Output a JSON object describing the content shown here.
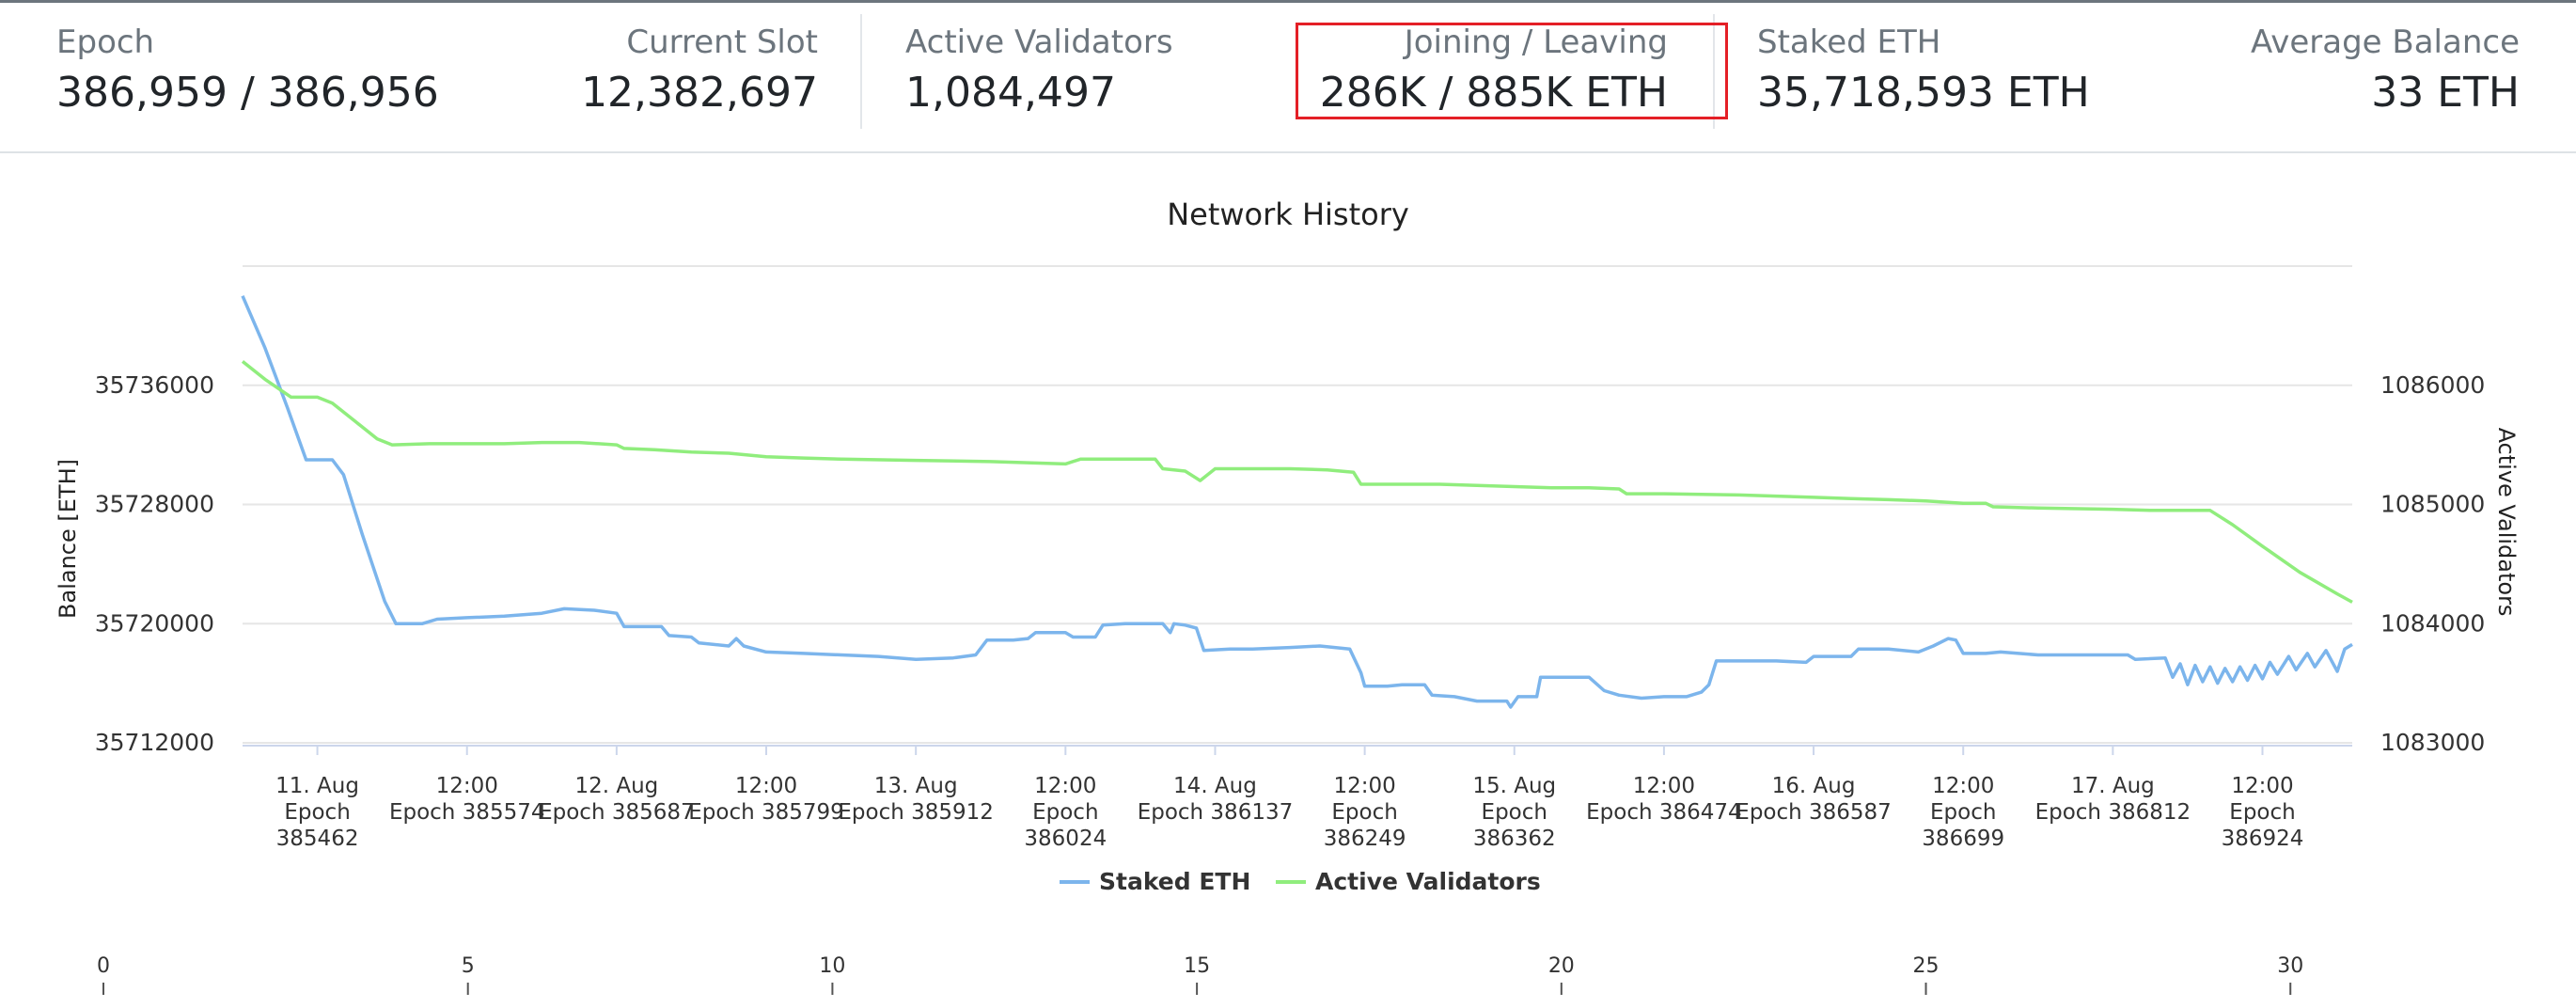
{
  "stats": {
    "epoch": {
      "label": "Epoch",
      "value": "386,959 / 386,956"
    },
    "current_slot": {
      "label": "Current Slot",
      "value": "12,382,697"
    },
    "active_validators": {
      "label": "Active Validators",
      "value": "1,084,497"
    },
    "joining_leaving": {
      "label": "Joining / Leaving",
      "value": "286K / 885K ETH"
    },
    "staked_eth": {
      "label": "Staked ETH",
      "value": "35,718,593 ETH"
    },
    "average_balance": {
      "label": "Average Balance",
      "value": "33 ETH"
    }
  },
  "chart_data": {
    "type": "line",
    "title": "Network History",
    "ylabel_left": "Balance [ETH]",
    "ylabel_right": "Active Validators",
    "ylim_left": [
      35712000,
      35744000
    ],
    "ylim_right": [
      1083000,
      1087000
    ],
    "yticks_left": [
      35712000,
      35720000,
      35728000,
      35736000
    ],
    "yticks_right": [
      1083000,
      1084000,
      1085000,
      1086000
    ],
    "x_range": [
      0,
      28.2
    ],
    "x_ticks": [
      {
        "x": 1,
        "lines": [
          "11. Aug",
          "Epoch",
          "385462"
        ]
      },
      {
        "x": 3,
        "lines": [
          "12:00",
          "Epoch 385574"
        ]
      },
      {
        "x": 5,
        "lines": [
          "12. Aug",
          "Epoch 385687"
        ]
      },
      {
        "x": 7,
        "lines": [
          "12:00",
          "Epoch 385799"
        ]
      },
      {
        "x": 9,
        "lines": [
          "13. Aug",
          "Epoch 385912"
        ]
      },
      {
        "x": 11,
        "lines": [
          "12:00",
          "Epoch",
          "386024"
        ]
      },
      {
        "x": 13,
        "lines": [
          "14. Aug",
          "Epoch 386137"
        ]
      },
      {
        "x": 15,
        "lines": [
          "12:00",
          "Epoch",
          "386249"
        ]
      },
      {
        "x": 17,
        "lines": [
          "15. Aug",
          "Epoch",
          "386362"
        ]
      },
      {
        "x": 19,
        "lines": [
          "12:00",
          "Epoch 386474"
        ]
      },
      {
        "x": 21,
        "lines": [
          "16. Aug",
          "Epoch 386587"
        ]
      },
      {
        "x": 23,
        "lines": [
          "12:00",
          "Epoch",
          "386699"
        ]
      },
      {
        "x": 25,
        "lines": [
          "17. Aug",
          "Epoch 386812"
        ]
      },
      {
        "x": 27,
        "lines": [
          "12:00",
          "Epoch",
          "386924"
        ]
      }
    ],
    "legend_position": "bottom-center",
    "grid": true,
    "series": [
      {
        "name": "Staked ETH",
        "axis": "left",
        "color": "#7cb5ec",
        "points": [
          [
            0,
            35742000
          ],
          [
            0.3,
            35738500
          ],
          [
            0.6,
            35734500
          ],
          [
            0.85,
            35731000
          ],
          [
            1.0,
            35731000
          ],
          [
            1.2,
            35731000
          ],
          [
            1.35,
            35730000
          ],
          [
            1.6,
            35726000
          ],
          [
            1.9,
            35721500
          ],
          [
            2.05,
            35720000
          ],
          [
            2.4,
            35720000
          ],
          [
            2.6,
            35720300
          ],
          [
            3.0,
            35720400
          ],
          [
            3.5,
            35720500
          ],
          [
            4.0,
            35720700
          ],
          [
            4.3,
            35721000
          ],
          [
            4.7,
            35720900
          ],
          [
            5.0,
            35720700
          ],
          [
            5.1,
            35719800
          ],
          [
            5.3,
            35719800
          ],
          [
            5.6,
            35719800
          ],
          [
            5.7,
            35719200
          ],
          [
            6.0,
            35719100
          ],
          [
            6.1,
            35718700
          ],
          [
            6.5,
            35718500
          ],
          [
            6.6,
            35719000
          ],
          [
            6.7,
            35718500
          ],
          [
            7.0,
            35718100
          ],
          [
            7.5,
            35718000
          ],
          [
            8.0,
            35717900
          ],
          [
            8.5,
            35717800
          ],
          [
            9.0,
            35717600
          ],
          [
            9.5,
            35717700
          ],
          [
            9.8,
            35717900
          ],
          [
            9.95,
            35718900
          ],
          [
            10.3,
            35718900
          ],
          [
            10.5,
            35719000
          ],
          [
            10.6,
            35719400
          ],
          [
            11.0,
            35719400
          ],
          [
            11.1,
            35719100
          ],
          [
            11.4,
            35719100
          ],
          [
            11.5,
            35719900
          ],
          [
            11.8,
            35720000
          ],
          [
            12.0,
            35720000
          ],
          [
            12.3,
            35720000
          ],
          [
            12.4,
            35719400
          ],
          [
            12.45,
            35720000
          ],
          [
            12.6,
            35719900
          ],
          [
            12.75,
            35719700
          ],
          [
            12.85,
            35718200
          ],
          [
            13.2,
            35718300
          ],
          [
            13.5,
            35718300
          ],
          [
            14.0,
            35718400
          ],
          [
            14.4,
            35718500
          ],
          [
            14.8,
            35718300
          ],
          [
            14.95,
            35716700
          ],
          [
            15.0,
            35715800
          ],
          [
            15.3,
            35715800
          ],
          [
            15.5,
            35715900
          ],
          [
            15.8,
            35715900
          ],
          [
            15.9,
            35715200
          ],
          [
            16.2,
            35715100
          ],
          [
            16.5,
            35714800
          ],
          [
            16.9,
            35714800
          ],
          [
            16.95,
            35714400
          ],
          [
            17.05,
            35715100
          ],
          [
            17.3,
            35715100
          ],
          [
            17.35,
            35716400
          ],
          [
            17.8,
            35716400
          ],
          [
            18.0,
            35716400
          ],
          [
            18.2,
            35715500
          ],
          [
            18.4,
            35715200
          ],
          [
            18.7,
            35715000
          ],
          [
            19.0,
            35715100
          ],
          [
            19.3,
            35715100
          ],
          [
            19.5,
            35715400
          ],
          [
            19.6,
            35715900
          ],
          [
            19.7,
            35717500
          ],
          [
            20.0,
            35717500
          ],
          [
            20.5,
            35717500
          ],
          [
            20.9,
            35717400
          ],
          [
            21.0,
            35717800
          ],
          [
            21.2,
            35717800
          ],
          [
            21.5,
            35717800
          ],
          [
            21.6,
            35718300
          ],
          [
            22.0,
            35718300
          ],
          [
            22.4,
            35718100
          ],
          [
            22.6,
            35718500
          ],
          [
            22.8,
            35719000
          ],
          [
            22.9,
            35718900
          ],
          [
            23.0,
            35718000
          ],
          [
            23.3,
            35718000
          ],
          [
            23.5,
            35718100
          ],
          [
            24.0,
            35717900
          ],
          [
            24.5,
            35717900
          ],
          [
            25.0,
            35717900
          ],
          [
            25.2,
            35717900
          ],
          [
            25.3,
            35717600
          ],
          [
            25.7,
            35717700
          ],
          [
            25.8,
            35716400
          ],
          [
            25.9,
            35717300
          ],
          [
            26.0,
            35715900
          ],
          [
            26.1,
            35717200
          ],
          [
            26.2,
            35716100
          ],
          [
            26.3,
            35717100
          ],
          [
            26.4,
            35716000
          ],
          [
            26.5,
            35717000
          ],
          [
            26.6,
            35716100
          ],
          [
            26.7,
            35717100
          ],
          [
            26.8,
            35716200
          ],
          [
            26.9,
            35717200
          ],
          [
            27.0,
            35716300
          ],
          [
            27.1,
            35717400
          ],
          [
            27.2,
            35716600
          ],
          [
            27.35,
            35717800
          ],
          [
            27.45,
            35716900
          ],
          [
            27.6,
            35718000
          ],
          [
            27.7,
            35717100
          ],
          [
            27.85,
            35718200
          ],
          [
            28.0,
            35716800
          ],
          [
            28.1,
            35718300
          ],
          [
            28.2,
            35718600
          ]
        ]
      },
      {
        "name": "Active Validators",
        "axis": "right",
        "color": "#90ed7d",
        "points": [
          [
            0,
            1086200
          ],
          [
            0.3,
            1086050
          ],
          [
            0.65,
            1085900
          ],
          [
            1.0,
            1085900
          ],
          [
            1.2,
            1085850
          ],
          [
            1.5,
            1085700
          ],
          [
            1.8,
            1085550
          ],
          [
            2.0,
            1085500
          ],
          [
            2.5,
            1085510
          ],
          [
            3.0,
            1085510
          ],
          [
            3.5,
            1085510
          ],
          [
            4.0,
            1085520
          ],
          [
            4.5,
            1085520
          ],
          [
            5.0,
            1085500
          ],
          [
            5.1,
            1085470
          ],
          [
            5.5,
            1085460
          ],
          [
            6.0,
            1085440
          ],
          [
            6.5,
            1085430
          ],
          [
            7.0,
            1085400
          ],
          [
            7.5,
            1085390
          ],
          [
            8.0,
            1085380
          ],
          [
            9.0,
            1085370
          ],
          [
            10.0,
            1085360
          ],
          [
            10.5,
            1085350
          ],
          [
            11.0,
            1085340
          ],
          [
            11.2,
            1085380
          ],
          [
            12.0,
            1085380
          ],
          [
            12.2,
            1085380
          ],
          [
            12.3,
            1085300
          ],
          [
            12.6,
            1085280
          ],
          [
            12.8,
            1085200
          ],
          [
            13.0,
            1085300
          ],
          [
            13.3,
            1085300
          ],
          [
            14.0,
            1085300
          ],
          [
            14.5,
            1085290
          ],
          [
            14.85,
            1085270
          ],
          [
            14.95,
            1085170
          ],
          [
            15.5,
            1085170
          ],
          [
            16.0,
            1085170
          ],
          [
            16.5,
            1085160
          ],
          [
            17.0,
            1085150
          ],
          [
            17.5,
            1085140
          ],
          [
            18.0,
            1085140
          ],
          [
            18.4,
            1085130
          ],
          [
            18.5,
            1085090
          ],
          [
            19.0,
            1085090
          ],
          [
            20.0,
            1085080
          ],
          [
            20.5,
            1085070
          ],
          [
            21.0,
            1085060
          ],
          [
            21.5,
            1085050
          ],
          [
            22.0,
            1085040
          ],
          [
            22.5,
            1085030
          ],
          [
            23.0,
            1085010
          ],
          [
            23.3,
            1085010
          ],
          [
            23.4,
            1084980
          ],
          [
            24.0,
            1084970
          ],
          [
            25.0,
            1084960
          ],
          [
            25.5,
            1084950
          ],
          [
            26.0,
            1084950
          ],
          [
            26.2,
            1084950
          ],
          [
            26.3,
            1084950
          ],
          [
            26.6,
            1084830
          ],
          [
            27.0,
            1084650
          ],
          [
            27.5,
            1084430
          ],
          [
            28.0,
            1084250
          ],
          [
            28.2,
            1084180
          ]
        ]
      }
    ],
    "scrollbar_axis": {
      "ticks": [
        "0",
        "5",
        "10",
        "15",
        "20",
        "25",
        "30"
      ],
      "values": [
        0,
        5,
        10,
        15,
        20,
        25,
        30
      ],
      "range": [
        0,
        30.5
      ]
    }
  }
}
